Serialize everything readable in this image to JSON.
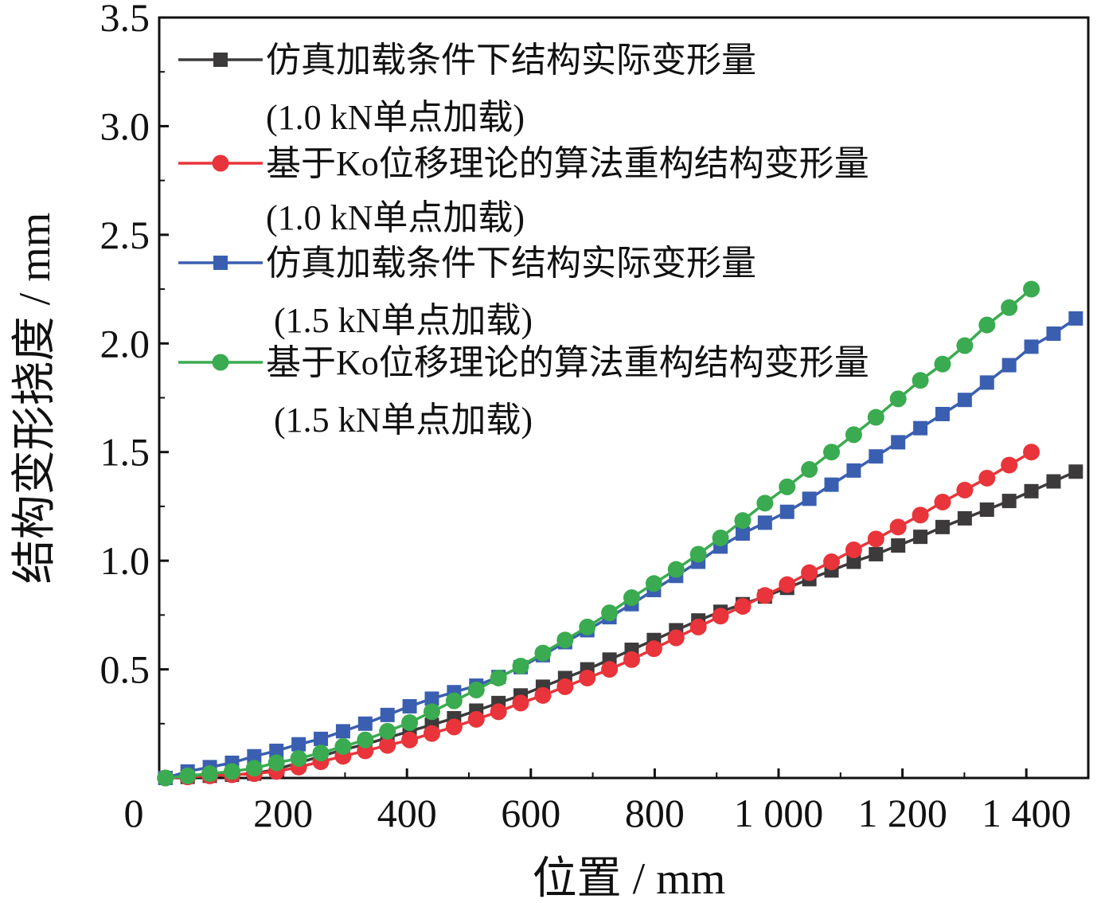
{
  "chart_data": {
    "type": "line",
    "xlabel": "位置 / mm",
    "ylabel": "结构变形挠度 / mm",
    "xlim": [
      0,
      1500
    ],
    "ylim": [
      0,
      3.5
    ],
    "x_ticks": [
      {
        "value": 0,
        "label": "0"
      },
      {
        "value": 200,
        "label": "200"
      },
      {
        "value": 400,
        "label": "400"
      },
      {
        "value": 600,
        "label": "600"
      },
      {
        "value": 800,
        "label": "800"
      },
      {
        "value": 1000,
        "label": "1 000"
      },
      {
        "value": 1200,
        "label": "1 200"
      },
      {
        "value": 1400,
        "label": "1 400"
      }
    ],
    "y_ticks": [
      {
        "value": 0.5,
        "label": "0.5"
      },
      {
        "value": 1.0,
        "label": "1.0"
      },
      {
        "value": 1.5,
        "label": "1.5"
      },
      {
        "value": 2.0,
        "label": "2.0"
      },
      {
        "value": 2.5,
        "label": "2.5"
      },
      {
        "value": 3.0,
        "label": "3.0"
      },
      {
        "value": 3.5,
        "label": "3.5"
      }
    ],
    "x_start": 10,
    "x_step": 35.85,
    "grid": false,
    "legend_position": "top-left",
    "series": [
      {
        "name": "仿真加载条件下结构实际变形量",
        "name_sub": "(1.0 kN单点加载)",
        "color": "#3c3a3a",
        "marker": "square",
        "values": [
          0.0,
          0.005,
          0.01,
          0.015,
          0.02,
          0.04,
          0.07,
          0.1,
          0.13,
          0.155,
          0.185,
          0.215,
          0.245,
          0.275,
          0.31,
          0.345,
          0.38,
          0.42,
          0.46,
          0.5,
          0.545,
          0.59,
          0.635,
          0.68,
          0.725,
          0.765,
          0.8,
          0.835,
          0.875,
          0.915,
          0.955,
          0.995,
          1.03,
          1.07,
          1.11,
          1.155,
          1.195,
          1.235,
          1.275,
          1.32,
          1.365,
          1.41
        ]
      },
      {
        "name": "基于Ko位移理论的算法重构结构变形量",
        "name_sub": "(1.0 kN单点加载)",
        "color": "#e8343a",
        "marker": "circle",
        "values": [
          0.0,
          0.005,
          0.01,
          0.015,
          0.02,
          0.03,
          0.05,
          0.075,
          0.1,
          0.125,
          0.15,
          0.175,
          0.205,
          0.235,
          0.27,
          0.305,
          0.345,
          0.38,
          0.42,
          0.46,
          0.5,
          0.545,
          0.595,
          0.645,
          0.695,
          0.745,
          0.79,
          0.84,
          0.89,
          0.945,
          0.995,
          1.05,
          1.1,
          1.155,
          1.21,
          1.27,
          1.325,
          1.38,
          1.44,
          1.5
        ]
      },
      {
        "name": "仿真加载条件下结构实际变形量",
        "name_sub": "(1.5 kN单点加载)",
        "color": "#3a5fb0",
        "marker": "square",
        "values": [
          0.0,
          0.03,
          0.05,
          0.07,
          0.1,
          0.125,
          0.155,
          0.18,
          0.215,
          0.25,
          0.29,
          0.33,
          0.365,
          0.395,
          0.425,
          0.465,
          0.51,
          0.565,
          0.625,
          0.68,
          0.74,
          0.8,
          0.865,
          0.93,
          0.995,
          1.065,
          1.125,
          1.175,
          1.225,
          1.285,
          1.35,
          1.415,
          1.48,
          1.545,
          1.61,
          1.675,
          1.74,
          1.82,
          1.9,
          1.985,
          2.045,
          2.115
        ]
      },
      {
        "name": "基于Ko位移理论的算法重构结构变形量",
        "name_sub": "(1.5 kN单点加载)",
        "color": "#3aab50",
        "marker": "circle",
        "values": [
          0.0,
          0.01,
          0.02,
          0.03,
          0.045,
          0.07,
          0.09,
          0.115,
          0.145,
          0.175,
          0.215,
          0.255,
          0.305,
          0.355,
          0.405,
          0.46,
          0.515,
          0.575,
          0.635,
          0.695,
          0.76,
          0.83,
          0.895,
          0.96,
          1.03,
          1.105,
          1.185,
          1.265,
          1.34,
          1.42,
          1.5,
          1.58,
          1.66,
          1.745,
          1.83,
          1.905,
          1.99,
          2.085,
          2.165,
          2.25
        ]
      }
    ]
  }
}
